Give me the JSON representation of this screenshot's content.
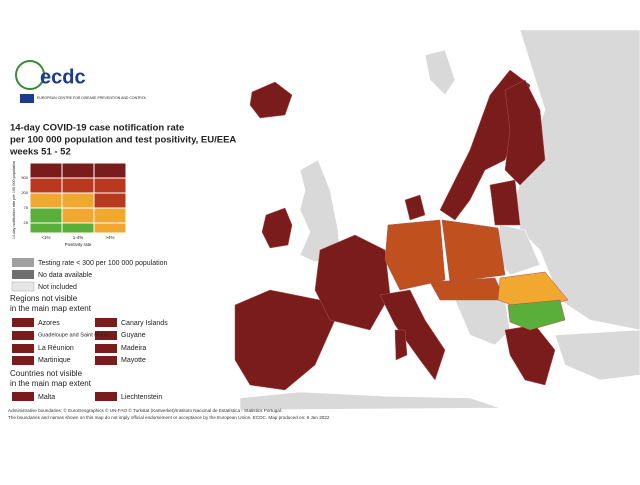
{
  "logo": {
    "name": "ecdc",
    "subtitle": "EUROPEAN CENTRE FOR DISEASE PREVENTION AND CONTROL"
  },
  "title": [
    "14-day COVID-19 case notification rate",
    "per 100 000 population and test positivity, EU/EEA",
    "weeks 51 - 52"
  ],
  "matrix": {
    "y_label": "14-day notification rate per 100 000 population",
    "y_ticks": [
      "500",
      "200",
      "75",
      "25"
    ],
    "x_label": "Positivity rate",
    "x_categories": [
      "<1%",
      "1-4%",
      ">4%"
    ]
  },
  "legend": [
    "Testing rate < 300 per 100 000 population",
    "No data available",
    "Not included"
  ],
  "regions": {
    "heading": [
      "Regions not visible",
      "in the main map extent"
    ],
    "items": [
      "Azores",
      "Canary Islands",
      "Guadeloupe and Saint Martin",
      "Guyane",
      "La Réunion",
      "Madeira",
      "Martinique",
      "Mayotte"
    ]
  },
  "countries": {
    "heading": [
      "Countries not visible",
      "in the main map extent"
    ],
    "items": [
      "Malta",
      "Liechtenstein"
    ]
  },
  "footer": [
    "Administrative boundaries: © EuroGeographics © UN-FAO © Turkstat (Kartverket)/Instituto Nacional de Estatística - Statistics Portugal.",
    "The boundaries and names shown on this map do not imply official endorsement or acceptance by the European Union. ECDC. Map produced on: 6 Jan 2022"
  ]
}
